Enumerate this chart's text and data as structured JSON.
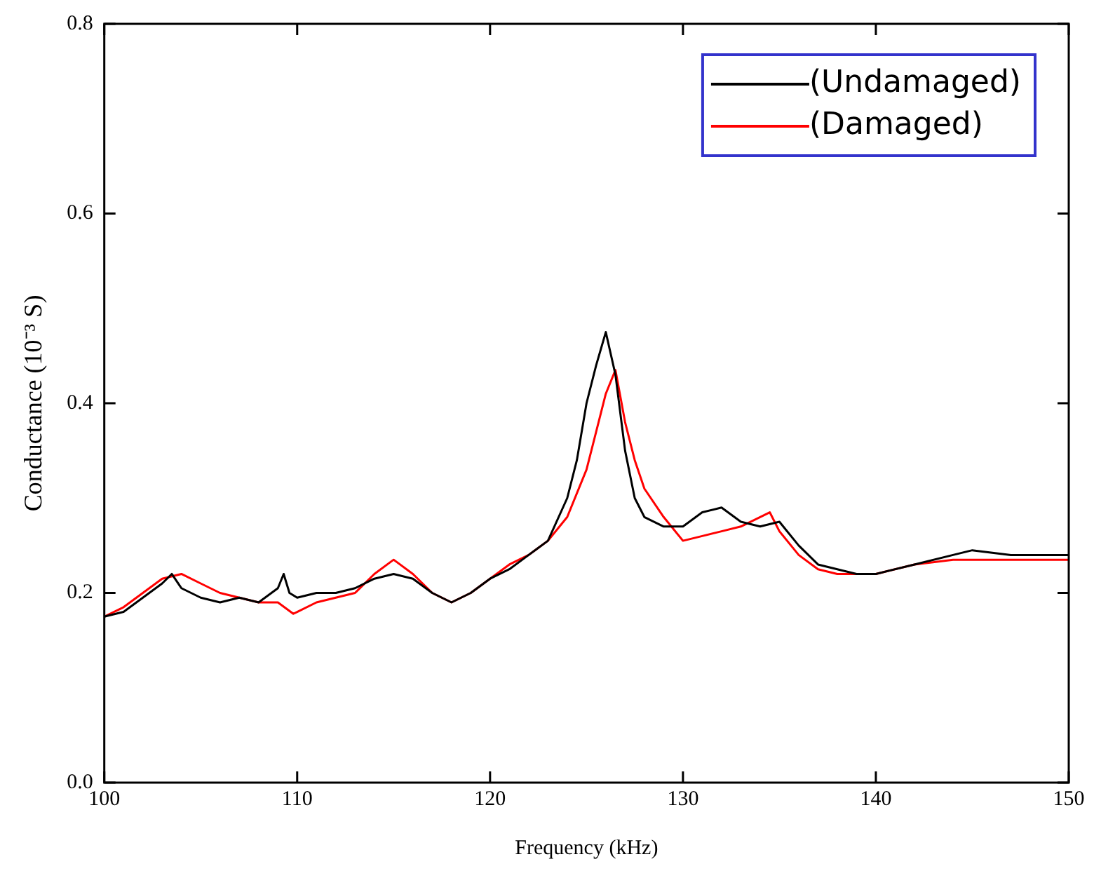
{
  "chart_data": {
    "type": "line",
    "xlabel": "Frequency (kHz)",
    "ylabel": "Conductance (10⁻³ S)",
    "xlim": [
      100,
      150
    ],
    "xticks": [
      100,
      110,
      120,
      130,
      140,
      150
    ],
    "ylim": [
      0,
      0.8
    ],
    "yticks": [
      {
        "value": 0,
        "label": "0.0"
      },
      {
        "value": 0.2,
        "label": "0.2"
      },
      {
        "value": 0.4,
        "label": "0.4"
      },
      {
        "value": 0.6,
        "label": "0.6"
      },
      {
        "value": 0.8,
        "label": "0.8"
      }
    ],
    "grid": false,
    "legend": "top right",
    "marker": "none",
    "line_style": "solid",
    "series": [
      {
        "name": "(Undamaged)",
        "color": "#000000",
        "x": [
          100,
          101,
          102,
          103,
          103.5,
          104,
          105,
          106,
          107,
          108,
          109,
          109.3,
          109.6,
          110,
          111,
          112,
          113,
          114,
          115,
          116,
          117,
          118,
          119,
          120,
          121,
          122,
          123,
          124,
          124.5,
          125,
          125.5,
          126,
          126.5,
          127,
          127.5,
          128,
          129,
          130,
          131,
          132,
          133,
          134,
          135,
          136,
          137,
          138,
          139,
          140,
          142,
          144,
          145,
          147,
          150
        ],
        "values": [
          0.175,
          0.18,
          0.195,
          0.21,
          0.22,
          0.205,
          0.195,
          0.19,
          0.195,
          0.19,
          0.205,
          0.22,
          0.2,
          0.195,
          0.2,
          0.2,
          0.205,
          0.215,
          0.22,
          0.215,
          0.2,
          0.19,
          0.2,
          0.215,
          0.225,
          0.24,
          0.255,
          0.3,
          0.34,
          0.4,
          0.44,
          0.475,
          0.43,
          0.35,
          0.3,
          0.28,
          0.27,
          0.27,
          0.285,
          0.29,
          0.275,
          0.27,
          0.275,
          0.25,
          0.23,
          0.225,
          0.22,
          0.22,
          0.23,
          0.24,
          0.245,
          0.24,
          0.24
        ]
      },
      {
        "name": "(Damaged)",
        "color": "#ff0000",
        "x": [
          100,
          101,
          102,
          103,
          104,
          105,
          106,
          107,
          108,
          109,
          109.8,
          110,
          111,
          112,
          113,
          114,
          115,
          116,
          117,
          118,
          119,
          120,
          121,
          122,
          123,
          124,
          125,
          125.5,
          126,
          126.5,
          127,
          127.5,
          128,
          129,
          130,
          131,
          132,
          133,
          134,
          134.5,
          135,
          136,
          137,
          138,
          140,
          142,
          144,
          147,
          150
        ],
        "values": [
          0.175,
          0.185,
          0.2,
          0.215,
          0.22,
          0.21,
          0.2,
          0.195,
          0.19,
          0.19,
          0.178,
          0.18,
          0.19,
          0.195,
          0.2,
          0.22,
          0.235,
          0.22,
          0.2,
          0.19,
          0.2,
          0.215,
          0.23,
          0.24,
          0.255,
          0.28,
          0.33,
          0.37,
          0.41,
          0.435,
          0.38,
          0.34,
          0.31,
          0.28,
          0.255,
          0.26,
          0.265,
          0.27,
          0.28,
          0.285,
          0.265,
          0.24,
          0.225,
          0.22,
          0.22,
          0.23,
          0.235,
          0.235,
          0.235
        ]
      }
    ]
  }
}
